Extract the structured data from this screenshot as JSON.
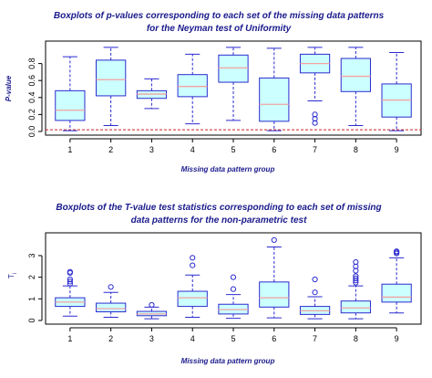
{
  "colors": {
    "box_fill": "#ccffff",
    "box_stroke": "#2b2bcf",
    "median": "#f4a0a0",
    "ref_line": "#cc2222",
    "title": "#1a1a8c"
  },
  "chart_data": [
    {
      "type": "boxplot",
      "title_lines": [
        "Boxplots of p-values corresponding to each set of the missing data patterns",
        "for the Neyman test of Uniformity"
      ],
      "xlabel": "Missing data pattern group",
      "ylabel": "P-value",
      "ylim": [
        0,
        1
      ],
      "yticks": [
        "0.0",
        "0.2",
        "0.4",
        "0.6",
        "0.8"
      ],
      "ytick_values": [
        0,
        0.2,
        0.4,
        0.6,
        0.8
      ],
      "categories": [
        "1",
        "2",
        "3",
        "4",
        "5",
        "6",
        "7",
        "8",
        "9"
      ],
      "reference_line": 0.02,
      "grid": false,
      "boxes": [
        {
          "group": "1",
          "whisker_low": 0.01,
          "q1": 0.13,
          "median": 0.25,
          "q3": 0.48,
          "whisker_high": 0.88,
          "outliers": []
        },
        {
          "group": "2",
          "whisker_low": 0.07,
          "q1": 0.42,
          "median": 0.61,
          "q3": 0.84,
          "whisker_high": 0.99,
          "outliers": []
        },
        {
          "group": "3",
          "whisker_low": 0.27,
          "q1": 0.39,
          "median": 0.44,
          "q3": 0.48,
          "whisker_high": 0.62,
          "outliers": []
        },
        {
          "group": "4",
          "whisker_low": 0.09,
          "q1": 0.41,
          "median": 0.53,
          "q3": 0.67,
          "whisker_high": 0.91,
          "outliers": []
        },
        {
          "group": "5",
          "whisker_low": 0.13,
          "q1": 0.58,
          "median": 0.75,
          "q3": 0.9,
          "whisker_high": 0.99,
          "outliers": []
        },
        {
          "group": "6",
          "whisker_low": 0.01,
          "q1": 0.12,
          "median": 0.32,
          "q3": 0.63,
          "whisker_high": 0.98,
          "outliers": []
        },
        {
          "group": "7",
          "whisker_low": 0.36,
          "q1": 0.69,
          "median": 0.8,
          "q3": 0.91,
          "whisker_high": 0.99,
          "outliers": [
            0.2,
            0.15,
            0.1
          ]
        },
        {
          "group": "8",
          "whisker_low": 0.07,
          "q1": 0.47,
          "median": 0.65,
          "q3": 0.86,
          "whisker_high": 0.99,
          "outliers": []
        },
        {
          "group": "9",
          "whisker_low": 0.01,
          "q1": 0.17,
          "median": 0.37,
          "q3": 0.56,
          "whisker_high": 0.93,
          "outliers": []
        }
      ]
    },
    {
      "type": "boxplot",
      "title_lines": [
        "Boxplots of the T-value test statistics corresponding to each set of missing",
        "data patterns for the non-parametric test"
      ],
      "xlabel": "Missing data pattern group",
      "ylabel": "T",
      "ylabel_sub": "i",
      "ylim": [
        0,
        3.8
      ],
      "yticks": [
        "0",
        "1",
        "2",
        "3"
      ],
      "ytick_values": [
        0,
        1,
        2,
        3
      ],
      "categories": [
        "1",
        "2",
        "3",
        "4",
        "5",
        "6",
        "7",
        "8",
        "9"
      ],
      "grid": false,
      "boxes": [
        {
          "group": "1",
          "whisker_low": 0.2,
          "q1": 0.65,
          "median": 0.85,
          "q3": 1.05,
          "whisker_high": 1.6,
          "outliers": [
            1.7,
            1.8,
            1.9,
            2.2,
            2.25
          ]
        },
        {
          "group": "2",
          "whisker_low": 0.15,
          "q1": 0.4,
          "median": 0.55,
          "q3": 0.8,
          "whisker_high": 1.3,
          "outliers": [
            1.55
          ]
        },
        {
          "group": "3",
          "whisker_low": 0.08,
          "q1": 0.22,
          "median": 0.3,
          "q3": 0.42,
          "whisker_high": 0.62,
          "outliers": [
            0.72
          ]
        },
        {
          "group": "4",
          "whisker_low": 0.15,
          "q1": 0.65,
          "median": 1.05,
          "q3": 1.35,
          "whisker_high": 2.1,
          "outliers": [
            2.55,
            2.9
          ]
        },
        {
          "group": "5",
          "whisker_low": 0.1,
          "q1": 0.3,
          "median": 0.5,
          "q3": 0.75,
          "whisker_high": 1.2,
          "outliers": [
            1.45,
            2.0
          ]
        },
        {
          "group": "6",
          "whisker_low": 0.12,
          "q1": 0.62,
          "median": 1.05,
          "q3": 1.78,
          "whisker_high": 3.4,
          "outliers": [
            3.72
          ]
        },
        {
          "group": "7",
          "whisker_low": 0.08,
          "q1": 0.28,
          "median": 0.45,
          "q3": 0.65,
          "whisker_high": 1.1,
          "outliers": [
            1.3,
            1.9
          ]
        },
        {
          "group": "8",
          "whisker_low": 0.08,
          "q1": 0.35,
          "median": 0.58,
          "q3": 0.9,
          "whisker_high": 1.6,
          "outliers": [
            1.75,
            1.85,
            1.95,
            2.05,
            2.3,
            2.5,
            2.7
          ]
        },
        {
          "group": "9",
          "whisker_low": 0.35,
          "q1": 0.85,
          "median": 1.08,
          "q3": 1.68,
          "whisker_high": 2.9,
          "outliers": [
            3.1,
            3.15,
            3.2
          ]
        }
      ]
    }
  ]
}
